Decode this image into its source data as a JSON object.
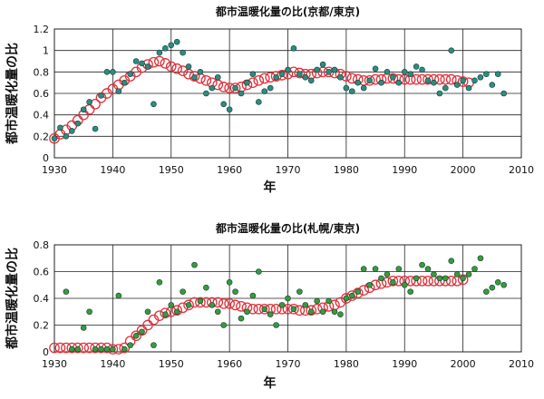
{
  "chart_data": [
    {
      "type": "scatter",
      "title": "都市温暖化量の比(京都/東京)",
      "xlabel": "年",
      "ylabel": "都市温暖化量の比",
      "xlim": [
        1930,
        2010
      ],
      "ylim": [
        0,
        1.2
      ],
      "xticks": [
        "1930",
        "1940",
        "1950",
        "1960",
        "1970",
        "1980",
        "1990",
        "2000",
        "2010"
      ],
      "yticks": [
        "0",
        "0.2",
        "0.4",
        "0.6",
        "0.8",
        "1",
        "1.2"
      ],
      "grid": true,
      "series": [
        {
          "marker": "filled-dot",
          "color": "#2e8b80",
          "x": [
            1930,
            1931,
            1932,
            1933,
            1934,
            1935,
            1936,
            1937,
            1938,
            1939,
            1940,
            1941,
            1942,
            1943,
            1944,
            1945,
            1946,
            1947,
            1948,
            1949,
            1950,
            1951,
            1952,
            1953,
            1954,
            1955,
            1956,
            1957,
            1958,
            1959,
            1960,
            1961,
            1962,
            1963,
            1964,
            1965,
            1966,
            1967,
            1968,
            1969,
            1970,
            1971,
            1972,
            1973,
            1974,
            1975,
            1976,
            1977,
            1978,
            1979,
            1980,
            1981,
            1982,
            1983,
            1984,
            1985,
            1986,
            1987,
            1988,
            1989,
            1990,
            1991,
            1992,
            1993,
            1994,
            1995,
            1996,
            1997,
            1998,
            1999,
            2000,
            2001,
            2002,
            2003,
            2004,
            2005,
            2006,
            2007
          ],
          "y": [
            0.18,
            0.28,
            0.2,
            0.25,
            0.32,
            0.45,
            0.52,
            0.27,
            0.58,
            0.8,
            0.8,
            0.62,
            0.7,
            0.78,
            0.9,
            0.88,
            0.85,
            0.5,
            0.98,
            1.02,
            1.05,
            1.08,
            0.98,
            0.85,
            0.75,
            0.8,
            0.6,
            0.65,
            0.75,
            0.5,
            0.45,
            0.65,
            0.6,
            0.7,
            0.78,
            0.52,
            0.62,
            0.65,
            0.75,
            0.78,
            0.82,
            1.02,
            0.78,
            0.75,
            0.72,
            0.82,
            0.87,
            0.8,
            0.82,
            0.75,
            0.65,
            0.62,
            0.7,
            0.65,
            0.72,
            0.83,
            0.7,
            0.8,
            0.75,
            0.7,
            0.8,
            0.78,
            0.85,
            0.82,
            0.72,
            0.7,
            0.6,
            0.65,
            1.0,
            0.68,
            0.72,
            0.65,
            0.72,
            0.75,
            0.78,
            0.68,
            0.78,
            0.6
          ]
        },
        {
          "marker": "open-ring",
          "color": "#e0323c",
          "x": [
            1930,
            1931,
            1932,
            1933,
            1934,
            1935,
            1936,
            1937,
            1938,
            1939,
            1940,
            1941,
            1942,
            1943,
            1944,
            1945,
            1946,
            1947,
            1948,
            1949,
            1950,
            1951,
            1952,
            1953,
            1954,
            1955,
            1956,
            1957,
            1958,
            1959,
            1960,
            1961,
            1962,
            1963,
            1964,
            1965,
            1966,
            1967,
            1968,
            1969,
            1970,
            1971,
            1972,
            1973,
            1974,
            1975,
            1976,
            1977,
            1978,
            1979,
            1980,
            1981,
            1982,
            1983,
            1984,
            1985,
            1986,
            1987,
            1988,
            1989,
            1990,
            1991,
            1992,
            1993,
            1994,
            1995,
            1996,
            1997,
            1998,
            1999,
            2000,
            2001
          ],
          "y": [
            0.18,
            0.22,
            0.26,
            0.3,
            0.35,
            0.4,
            0.45,
            0.5,
            0.56,
            0.6,
            0.64,
            0.68,
            0.72,
            0.76,
            0.8,
            0.84,
            0.87,
            0.89,
            0.9,
            0.88,
            0.85,
            0.83,
            0.81,
            0.78,
            0.76,
            0.74,
            0.72,
            0.7,
            0.68,
            0.66,
            0.65,
            0.65,
            0.66,
            0.68,
            0.7,
            0.72,
            0.74,
            0.75,
            0.76,
            0.77,
            0.78,
            0.8,
            0.79,
            0.78,
            0.78,
            0.79,
            0.8,
            0.8,
            0.79,
            0.78,
            0.76,
            0.74,
            0.73,
            0.72,
            0.72,
            0.73,
            0.73,
            0.74,
            0.74,
            0.73,
            0.73,
            0.73,
            0.73,
            0.73,
            0.73,
            0.73,
            0.73,
            0.73,
            0.73,
            0.72,
            0.71,
            0.7
          ]
        }
      ]
    },
    {
      "type": "scatter",
      "title": "都市温暖化量の比(札幌/東京)",
      "xlabel": "年",
      "ylabel": "都市温暖化量の比",
      "xlim": [
        1930,
        2010
      ],
      "ylim": [
        0,
        0.8
      ],
      "xticks": [
        "1930",
        "1940",
        "1950",
        "1960",
        "1970",
        "1980",
        "1990",
        "2000",
        "2010"
      ],
      "yticks": [
        "0",
        "0.2",
        "0.4",
        "0.6",
        "0.8"
      ],
      "grid": true,
      "series": [
        {
          "marker": "filled-dot",
          "color": "#3a9a3a",
          "x": [
            1932,
            1933,
            1934,
            1935,
            1936,
            1937,
            1938,
            1939,
            1940,
            1941,
            1942,
            1943,
            1944,
            1945,
            1946,
            1947,
            1948,
            1949,
            1950,
            1951,
            1952,
            1953,
            1954,
            1955,
            1956,
            1957,
            1958,
            1959,
            1960,
            1961,
            1962,
            1963,
            1964,
            1965,
            1966,
            1967,
            1968,
            1969,
            1970,
            1971,
            1972,
            1973,
            1974,
            1975,
            1976,
            1977,
            1978,
            1979,
            1980,
            1981,
            1982,
            1983,
            1984,
            1985,
            1986,
            1987,
            1988,
            1989,
            1990,
            1991,
            1992,
            1993,
            1994,
            1995,
            1996,
            1997,
            1998,
            1999,
            2000,
            2001,
            2002,
            2003,
            2004,
            2005,
            2006,
            2007
          ],
          "y": [
            0.45,
            0.02,
            0.02,
            0.18,
            0.3,
            0.02,
            0.02,
            0.02,
            0.02,
            0.42,
            0.02,
            0.05,
            0.12,
            0.15,
            0.3,
            0.05,
            0.52,
            0.28,
            0.35,
            0.3,
            0.45,
            0.35,
            0.65,
            0.38,
            0.48,
            0.35,
            0.3,
            0.2,
            0.52,
            0.45,
            0.25,
            0.3,
            0.42,
            0.6,
            0.32,
            0.28,
            0.2,
            0.35,
            0.4,
            0.32,
            0.45,
            0.35,
            0.3,
            0.38,
            0.3,
            0.38,
            0.3,
            0.28,
            0.4,
            0.42,
            0.45,
            0.62,
            0.5,
            0.62,
            0.55,
            0.58,
            0.52,
            0.62,
            0.5,
            0.45,
            0.55,
            0.65,
            0.62,
            0.58,
            0.55,
            0.55,
            0.68,
            0.58,
            0.55,
            0.58,
            0.62,
            0.7,
            0.45,
            0.48,
            0.52,
            0.5
          ]
        },
        {
          "marker": "open-ring",
          "color": "#e0323c",
          "x": [
            1930,
            1931,
            1932,
            1933,
            1934,
            1935,
            1936,
            1937,
            1938,
            1939,
            1940,
            1941,
            1942,
            1943,
            1944,
            1945,
            1946,
            1947,
            1948,
            1949,
            1950,
            1951,
            1952,
            1953,
            1954,
            1955,
            1956,
            1957,
            1958,
            1959,
            1960,
            1961,
            1962,
            1963,
            1964,
            1965,
            1966,
            1967,
            1968,
            1969,
            1970,
            1971,
            1972,
            1973,
            1974,
            1975,
            1976,
            1977,
            1978,
            1979,
            1980,
            1981,
            1982,
            1983,
            1984,
            1985,
            1986,
            1987,
            1988,
            1989,
            1990,
            1991,
            1992,
            1993,
            1994,
            1995,
            1996,
            1997,
            1998,
            1999,
            2000
          ],
          "y": [
            0.03,
            0.03,
            0.03,
            0.03,
            0.03,
            0.03,
            0.03,
            0.03,
            0.03,
            0.03,
            0.02,
            0.02,
            0.03,
            0.08,
            0.12,
            0.16,
            0.2,
            0.24,
            0.27,
            0.29,
            0.3,
            0.31,
            0.33,
            0.35,
            0.37,
            0.37,
            0.37,
            0.37,
            0.37,
            0.36,
            0.36,
            0.35,
            0.34,
            0.33,
            0.32,
            0.32,
            0.32,
            0.32,
            0.32,
            0.32,
            0.32,
            0.32,
            0.31,
            0.31,
            0.31,
            0.32,
            0.33,
            0.34,
            0.35,
            0.37,
            0.4,
            0.42,
            0.44,
            0.46,
            0.48,
            0.5,
            0.51,
            0.52,
            0.53,
            0.53,
            0.53,
            0.53,
            0.53,
            0.53,
            0.53,
            0.53,
            0.53,
            0.53,
            0.53,
            0.53,
            0.54
          ]
        }
      ]
    }
  ]
}
